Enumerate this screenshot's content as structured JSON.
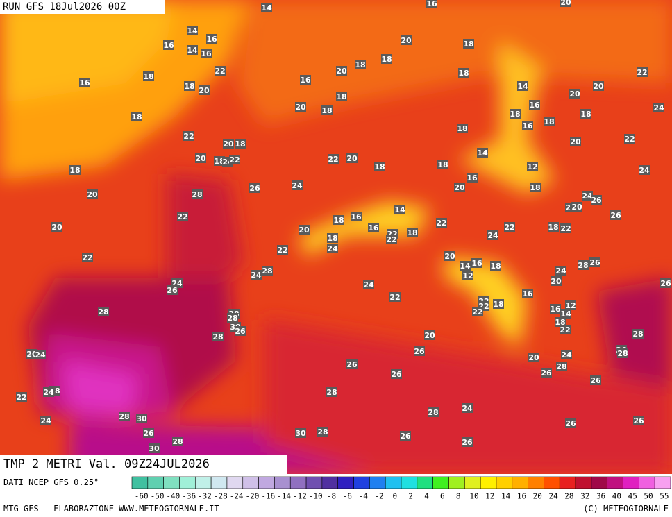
{
  "header": {
    "run": "RUN GFS 18Jul2026 00Z"
  },
  "footer": {
    "title": "TMP 2 METRI Val. 09Z24JUL2026",
    "source": "DATI NCEP GFS 0.25°",
    "credit": "MTG-GFS — ELABORAZIONE WWW.METEOGIORNALE.IT",
    "copyright": "(C) METEOGIORNALE"
  },
  "colorbar": {
    "labels": [
      -60,
      -50,
      -40,
      -36,
      -32,
      -28,
      -24,
      -20,
      -16,
      -14,
      -12,
      -10,
      -8,
      -6,
      -4,
      -2,
      0,
      2,
      4,
      6,
      8,
      10,
      12,
      14,
      16,
      20,
      24,
      28,
      32,
      36,
      40,
      45,
      50,
      55
    ],
    "colors": [
      "#40c0a0",
      "#60d0b0",
      "#80e0c0",
      "#a0f0d8",
      "#c0f0e8",
      "#d0e8f0",
      "#e0d8f0",
      "#d0c0e8",
      "#c0a8e0",
      "#a890d0",
      "#9070c0",
      "#7050b0",
      "#5030a0",
      "#3020c0",
      "#2040e0",
      "#2080f0",
      "#20c0f0",
      "#20e0e0",
      "#20e080",
      "#40f020",
      "#a0f020",
      "#e0f020",
      "#fff000",
      "#ffd000",
      "#ffb000",
      "#ff8000",
      "#ff5000",
      "#e82020",
      "#c01030",
      "#a00848",
      "#c01080",
      "#e020c0",
      "#f060e0",
      "#f8a0f0"
    ]
  },
  "map": {
    "labels": [
      14,
      16,
      20,
      14,
      16,
      16,
      14,
      16,
      22,
      18,
      16,
      18,
      20,
      16,
      20,
      18,
      20,
      18,
      18,
      18,
      22,
      14,
      20,
      20,
      18,
      20,
      18,
      16,
      18,
      18,
      24,
      16,
      18,
      18,
      18,
      22,
      20,
      18,
      20,
      22,
      14,
      18,
      20,
      18,
      24,
      22,
      22,
      20,
      18,
      18,
      12,
      24,
      26,
      24,
      16,
      20,
      18,
      28,
      20,
      22,
      14,
      24,
      20,
      20,
      26,
      26,
      18,
      16,
      16,
      18,
      22,
      22,
      18,
      22,
      20,
      20,
      18,
      24,
      22,
      22,
      24,
      22,
      22,
      20,
      14,
      16,
      18,
      12,
      24,
      28,
      24,
      28,
      26,
      20,
      24,
      26,
      24,
      22,
      16,
      26,
      28,
      22,
      22,
      22,
      18,
      16,
      12,
      28,
      28,
      30,
      26,
      14,
      18,
      22,
      28,
      20,
      26,
      28,
      26,
      28,
      20,
      24,
      20,
      24,
      28,
      26,
      26,
      26,
      26,
      22,
      28,
      24,
      28,
      24,
      28,
      28,
      30,
      24,
      26,
      30,
      28,
      26,
      26,
      26,
      28,
      30,
      26
    ]
  }
}
